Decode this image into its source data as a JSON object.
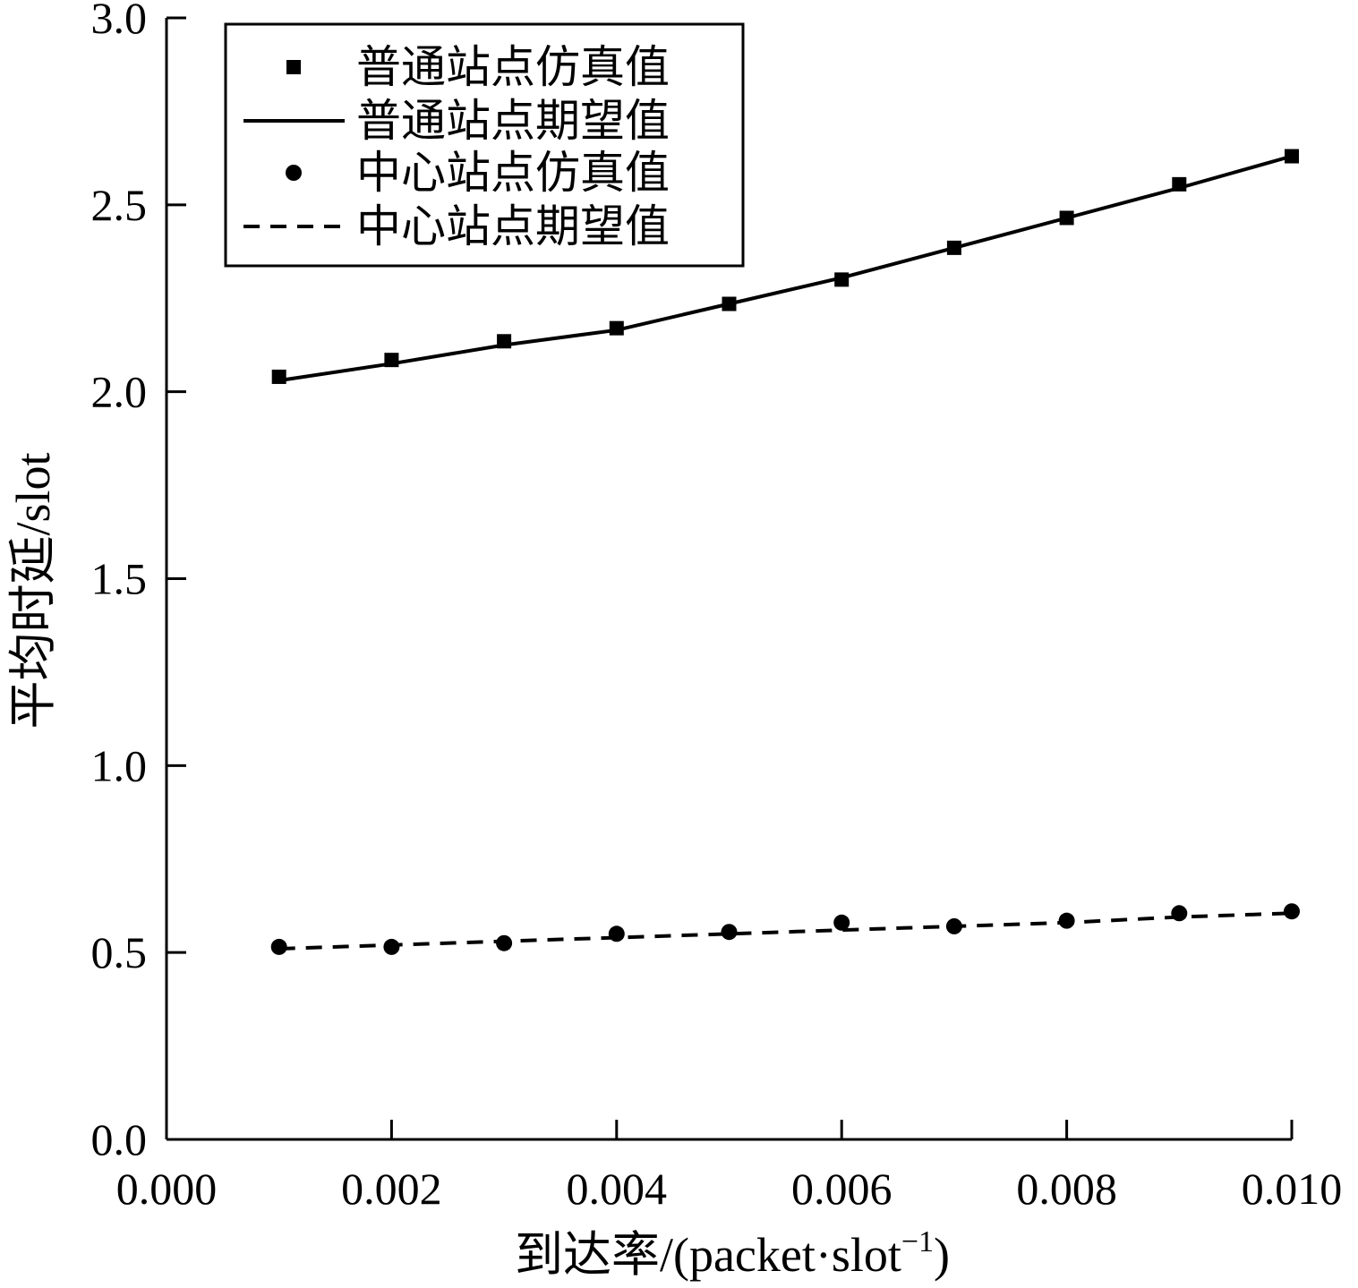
{
  "chart_data": {
    "type": "line",
    "title": "",
    "xlabel": "到达率/(packet·slot",
    "xlabel_superscript": "−1",
    "xlabel_suffix": ")",
    "ylabel": "平均时延/slot",
    "xlim": [
      0.0,
      0.01
    ],
    "ylim": [
      0.0,
      3.0
    ],
    "xticks": [
      "0.000",
      "0.002",
      "0.004",
      "0.006",
      "0.008",
      "0.010"
    ],
    "yticks": [
      "0.0",
      "0.5",
      "1.0",
      "1.5",
      "2.0",
      "2.5",
      "3.0"
    ],
    "grid": false,
    "legend_position": "top-left",
    "x": [
      0.001,
      0.002,
      0.003,
      0.004,
      0.005,
      0.006,
      0.007,
      0.008,
      0.009,
      0.01
    ],
    "series": [
      {
        "name": "普通站点仿真值",
        "style": "square-markers",
        "values": [
          2.04,
          2.085,
          2.135,
          2.17,
          2.235,
          2.3,
          2.385,
          2.465,
          2.555,
          2.63
        ]
      },
      {
        "name": "普通站点期望值",
        "style": "solid-line",
        "values": [
          2.03,
          2.075,
          2.125,
          2.165,
          2.235,
          2.305,
          2.385,
          2.465,
          2.545,
          2.63
        ]
      },
      {
        "name": "中心站点仿真值",
        "style": "circle-markers",
        "values": [
          0.515,
          0.515,
          0.525,
          0.55,
          0.555,
          0.58,
          0.57,
          0.585,
          0.605,
          0.61
        ]
      },
      {
        "name": "中心站点期望值",
        "style": "dashed-line",
        "values": [
          0.51,
          0.52,
          0.53,
          0.54,
          0.55,
          0.56,
          0.57,
          0.58,
          0.595,
          0.605
        ]
      }
    ],
    "colors": {
      "ink": "#000000",
      "background": "#ffffff"
    }
  }
}
